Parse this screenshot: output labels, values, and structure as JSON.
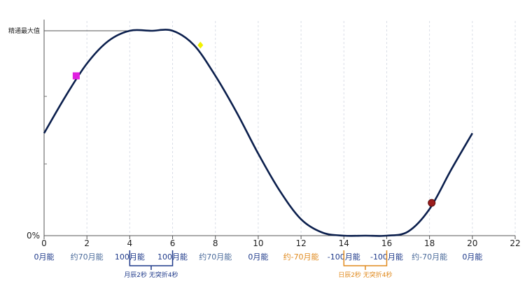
{
  "chart_data": {
    "type": "line",
    "title": "",
    "xlabel": "",
    "ylabel": "",
    "xlim": [
      0,
      22
    ],
    "x_ticks": [
      0,
      2,
      4,
      6,
      8,
      10,
      12,
      14,
      16,
      18,
      20,
      22
    ],
    "y_tick_labels": {
      "bottom": "0%",
      "top": "精通最大值"
    },
    "grid": "vertical dashed",
    "series": [
      {
        "curve": [
          [
            0,
            0.5
          ],
          [
            1,
            0.68
          ],
          [
            2,
            0.84
          ],
          [
            3,
            0.95
          ],
          [
            4,
            1.0
          ],
          [
            5,
            1.0
          ],
          [
            6,
            1.0
          ],
          [
            7,
            0.93
          ],
          [
            8,
            0.78
          ],
          [
            9,
            0.6
          ],
          [
            10,
            0.4
          ],
          [
            11,
            0.22
          ],
          [
            12,
            0.08
          ],
          [
            13,
            0.015
          ],
          [
            14,
            0.0
          ],
          [
            15,
            0.0
          ],
          [
            16,
            0.0
          ],
          [
            17,
            0.02
          ],
          [
            18,
            0.13
          ],
          [
            19,
            0.32
          ],
          [
            20,
            0.5
          ]
        ],
        "color": "#0b1f4d"
      }
    ],
    "markers": [
      {
        "x": 1.5,
        "y": 0.78,
        "shape": "square",
        "color": "#e020e0"
      },
      {
        "x": 7.3,
        "y": 0.93,
        "shape": "diamond",
        "color": "#f2f200"
      },
      {
        "x": 18.1,
        "y": 0.16,
        "shape": "circle",
        "color": "#9b1c1c"
      }
    ],
    "point_labels": [
      {
        "x": 0,
        "text": "0月能",
        "color": "#1f3a8a"
      },
      {
        "x": 2,
        "text": "约70月能",
        "color": "#4a6a9a"
      },
      {
        "x": 4,
        "text": "100月能",
        "color": "#1f3a8a"
      },
      {
        "x": 6,
        "text": "100月能",
        "color": "#1f3a8a"
      },
      {
        "x": 8,
        "text": "约70月能",
        "color": "#4a6a9a"
      },
      {
        "x": 10,
        "text": "0月能",
        "color": "#1f3a8a"
      },
      {
        "x": 12,
        "text": "约-70月能",
        "color": "#e08a1e"
      },
      {
        "x": 14,
        "text": "-100月能",
        "color": "#1f3a8a"
      },
      {
        "x": 16,
        "text": "-100月能",
        "color": "#1f3a8a"
      },
      {
        "x": 18,
        "text": "约-70月能",
        "color": "#4a6a9a"
      },
      {
        "x": 20,
        "text": "0月能",
        "color": "#1f3a8a"
      }
    ],
    "annotations": [
      {
        "x_range": [
          4,
          6
        ],
        "text": "月辰2秒 无突折4秒",
        "color": "#1f3a8a"
      },
      {
        "x_range": [
          14,
          16
        ],
        "text": "日辰2秒 无突折4秒",
        "color": "#e08a1e"
      }
    ]
  }
}
